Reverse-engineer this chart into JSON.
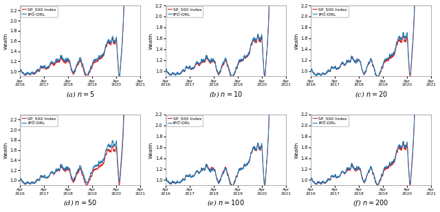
{
  "subplots": [
    {
      "label": "(a) $n = 5$",
      "ylim": [
        0.9,
        2.3
      ]
    },
    {
      "label": "(b) $n = 10$",
      "ylim": [
        0.9,
        2.2
      ]
    },
    {
      "label": "(c) $n = 20$",
      "ylim": [
        0.9,
        2.2
      ]
    },
    {
      "label": "(d) $n = 50$",
      "ylim": [
        0.9,
        2.3
      ]
    },
    {
      "label": "(e) $n = 100$",
      "ylim": [
        0.9,
        2.2
      ]
    },
    {
      "label": "(f) $n = 200$",
      "ylim": [
        0.9,
        2.2
      ]
    }
  ],
  "ylabel": "Wealth",
  "sp500_color": "#d62728",
  "ipo_color": "#1f77b4",
  "sp500_label": "SP_500 Index",
  "ipo_label": "IPO-DRL",
  "band_alpha": 0.25,
  "ipo_band_widths": [
    0.055,
    0.038,
    0.028,
    0.045,
    0.025,
    0.018
  ],
  "ipo_offsets": [
    0.04,
    0.03,
    0.04,
    0.05,
    0.03,
    0.025
  ]
}
